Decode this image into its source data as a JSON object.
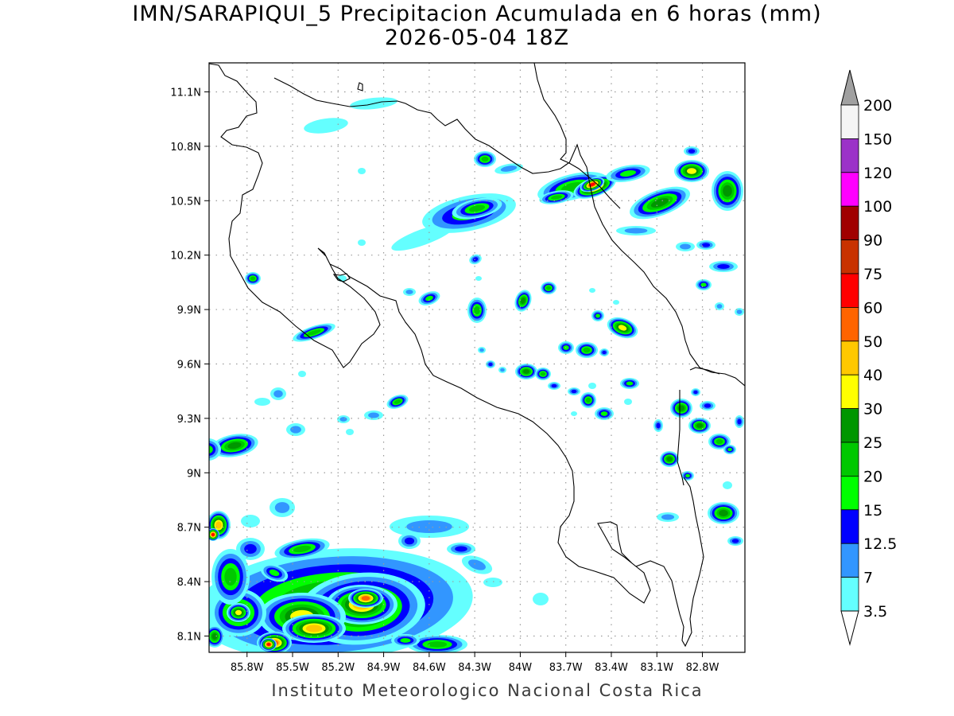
{
  "title_line1": "IMN/SARAPIQUI_5 Precipitacion Acumulada en 6 horas (mm)",
  "title_line2": "2026-05-04 18Z",
  "footer": "Instituto Meteorologico Nacional Costa Rica",
  "lon_ticks": [
    "85.8W",
    "85.5W",
    "85.2W",
    "84.9W",
    "84.6W",
    "84.3W",
    "84W",
    "83.7W",
    "83.4W",
    "83.1W",
    "82.8W"
  ],
  "lon_values": [
    -85.8,
    -85.5,
    -85.2,
    -84.9,
    -84.6,
    -84.3,
    -84.0,
    -83.7,
    -83.4,
    -83.1,
    -82.8
  ],
  "lat_ticks": [
    "11.1N",
    "10.8N",
    "10.5N",
    "10.2N",
    "9.9N",
    "9.6N",
    "9.3N",
    "9N",
    "8.7N",
    "8.4N",
    "8.1N"
  ],
  "lat_values": [
    11.1,
    10.8,
    10.5,
    10.2,
    9.9,
    9.6,
    9.3,
    9.0,
    8.7,
    8.4,
    8.1
  ],
  "extent": {
    "lon_min": -86.05,
    "lon_max": -82.52,
    "lat_min": 8.01,
    "lat_max": 11.26
  },
  "colorbar": {
    "levels": [
      "200",
      "150",
      "120",
      "100",
      "90",
      "75",
      "60",
      "50",
      "40",
      "30",
      "25",
      "20",
      "15",
      "12.5",
      "7",
      "3.5"
    ],
    "colors": [
      "#f5f5f5",
      "#9b32c8",
      "#ff00ff",
      "#a00000",
      "#c83200",
      "#ff0000",
      "#ff6400",
      "#ffc800",
      "#ffff00",
      "#009600",
      "#00c800",
      "#00ff00",
      "#0000ff",
      "#3296ff",
      "#64ffff"
    ],
    "over_color": "#a0a0a0",
    "under_color": "#ffffff"
  },
  "colors": {
    "c35": "#64ffff",
    "c7": "#3296ff",
    "c125": "#0000ff",
    "c15": "#00ff00",
    "c20": "#00c800",
    "c25": "#009600",
    "c30": "#ffff00",
    "c40": "#ffc800",
    "c50": "#ff6400",
    "c60": "#ff0000"
  }
}
